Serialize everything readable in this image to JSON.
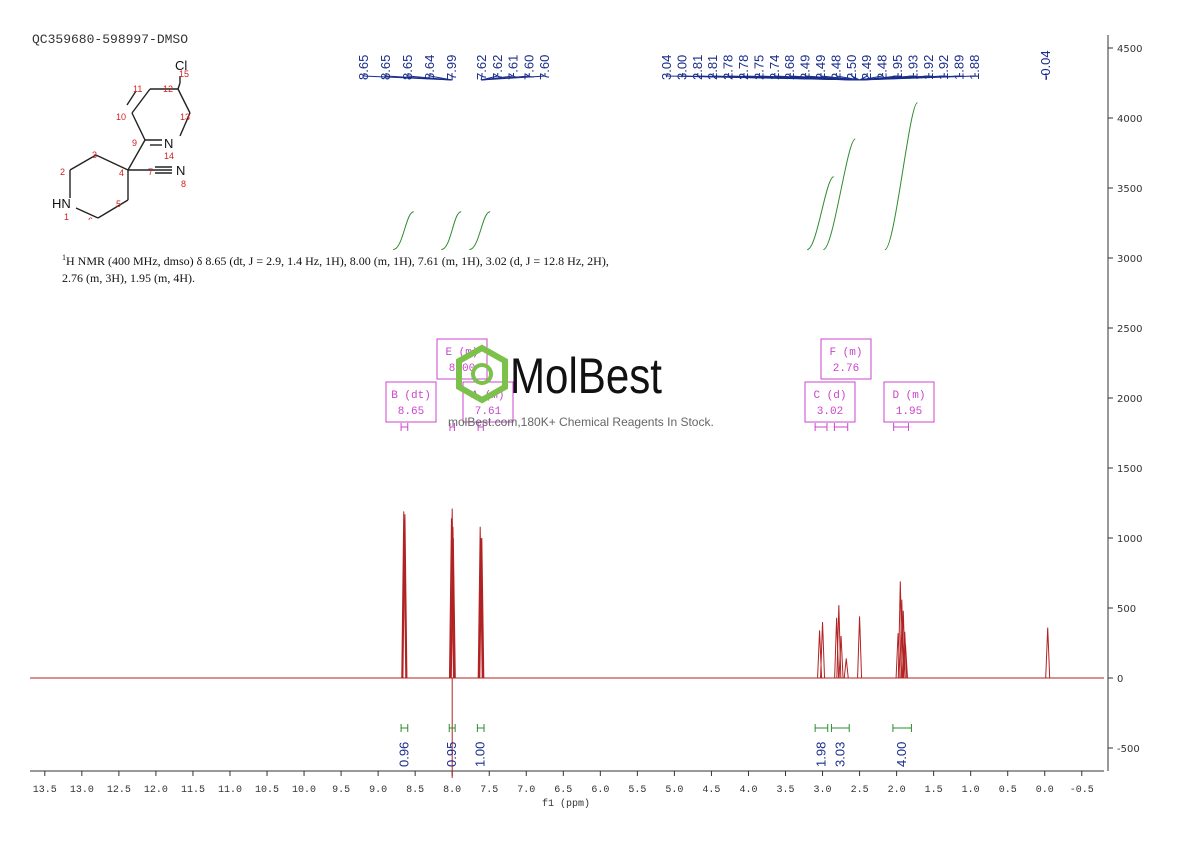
{
  "sample_id": "QC359680-598997-DMSO",
  "nmr_description": {
    "sup": "1",
    "text": "H NMR (400 MHz, dmso) δ 8.65 (dt, J = 2.9, 1.4 Hz, 1H), 8.00 (m, 1H), 7.61 (m, 1H), 3.02 (d, J = 12.8 Hz, 2H), 2.76 (m, 3H), 1.95 (m, 4H)."
  },
  "structure": {
    "atoms": [
      "Cl",
      "N",
      "N",
      "HN"
    ],
    "numbers": [
      "1",
      "2",
      "3",
      "4",
      "5",
      "6",
      "7",
      "8",
      "9",
      "10",
      "11",
      "12",
      "13",
      "14",
      "15"
    ]
  },
  "watermark": {
    "brand": "MolBest",
    "tagline": "molBest.com,180K+ Chemical Reagents In Stock."
  },
  "colors": {
    "spectrum": "#b22222",
    "peak_label": "#1a2d8c",
    "integral": "#2e8b2e",
    "multiplet": "#cc44cc",
    "axis": "#333333",
    "logo": "#7cc24a"
  },
  "chart_data": {
    "type": "line",
    "xlabel": "f1 (ppm)",
    "ylabel": "",
    "xlim": [
      13.7,
      -0.8
    ],
    "ylim": [
      -650,
      4800
    ],
    "x_ticks": [
      "13.5",
      "13.0",
      "12.5",
      "12.0",
      "11.5",
      "11.0",
      "10.5",
      "10.0",
      "9.5",
      "9.0",
      "8.5",
      "8.0",
      "7.5",
      "7.0",
      "6.5",
      "6.0",
      "5.5",
      "5.0",
      "4.5",
      "4.0",
      "3.5",
      "3.0",
      "2.5",
      "2.0",
      "1.5",
      "1.0",
      "0.5",
      "0.0",
      "-0.5"
    ],
    "y_ticks": [
      "-500",
      "0",
      "500",
      "1000",
      "1500",
      "2000",
      "2500",
      "3000",
      "3500",
      "4000",
      "4500"
    ],
    "peaks": [
      {
        "ppm": 8.654,
        "height": 1190
      },
      {
        "ppm": 8.649,
        "height": 1130
      },
      {
        "ppm": 8.644,
        "height": 1120
      },
      {
        "ppm": 8.638,
        "height": 1170
      },
      {
        "ppm": 8.01,
        "height": 1140
      },
      {
        "ppm": 8.0,
        "height": 1210
      },
      {
        "ppm": 7.99,
        "height": 1080
      },
      {
        "ppm": 7.985,
        "height": 1000
      },
      {
        "ppm": 7.622,
        "height": 1080
      },
      {
        "ppm": 7.614,
        "height": 1000
      },
      {
        "ppm": 7.606,
        "height": 990
      },
      {
        "ppm": 7.6,
        "height": 1000
      },
      {
        "ppm": 3.04,
        "height": 340
      },
      {
        "ppm": 3.0,
        "height": 400
      },
      {
        "ppm": 2.81,
        "height": 430
      },
      {
        "ppm": 2.78,
        "height": 520
      },
      {
        "ppm": 2.75,
        "height": 300
      },
      {
        "ppm": 2.68,
        "height": 140
      },
      {
        "ppm": 2.5,
        "height": 440
      },
      {
        "ppm": 1.98,
        "height": 320
      },
      {
        "ppm": 1.95,
        "height": 690
      },
      {
        "ppm": 1.93,
        "height": 560
      },
      {
        "ppm": 1.91,
        "height": 480
      },
      {
        "ppm": 1.89,
        "height": 330
      },
      {
        "ppm": 1.88,
        "height": 240
      },
      {
        "ppm": -0.04,
        "height": 360
      }
    ],
    "peak_label_groups": [
      {
        "labels": [
          "8.65",
          "8.65",
          "8.65",
          "8.64",
          "7.99"
        ],
        "target_ppm": 8.0
      },
      {
        "labels": [
          "7.62",
          "7.62",
          "7.61",
          "7.60",
          "7.60"
        ],
        "target_ppm": 7.61
      },
      {
        "labels": [
          "3.04",
          "3.00",
          "2.81",
          "2.81",
          "2.78",
          "2.78",
          "2.75",
          "2.74",
          "2.68",
          "2.49",
          "2.49",
          "2.48",
          "2.50",
          "2.49",
          "2.48",
          "1.95",
          "1.93",
          "1.92",
          "1.92",
          "1.89",
          "1.88"
        ],
        "target_ppm": 2.5
      },
      {
        "labels": [
          "-0.04"
        ],
        "target_ppm": -0.04
      }
    ],
    "integrals": [
      {
        "value": "0.96",
        "from": 8.69,
        "to": 8.6
      },
      {
        "value": "0.95",
        "from": 8.04,
        "to": 7.96
      },
      {
        "value": "1.00",
        "from": 7.66,
        "to": 7.57
      },
      {
        "value": "1.98",
        "from": 3.1,
        "to": 2.93
      },
      {
        "value": "3.03",
        "from": 2.88,
        "to": 2.64
      },
      {
        "value": "4.00",
        "from": 2.05,
        "to": 1.8
      }
    ],
    "integral_curves": [
      {
        "from": 8.69,
        "to": 8.6,
        "y_start": 3060,
        "y_end": 3330
      },
      {
        "from": 8.04,
        "to": 7.96,
        "y_start": 3060,
        "y_end": 3330
      },
      {
        "from": 7.66,
        "to": 7.57,
        "y_start": 3060,
        "y_end": 3330
      },
      {
        "from": 3.1,
        "to": 2.93,
        "y_start": 3060,
        "y_end": 3580
      },
      {
        "from": 2.88,
        "to": 2.64,
        "y_start": 3060,
        "y_end": 3850
      },
      {
        "from": 2.05,
        "to": 1.8,
        "y_start": 3060,
        "y_end": 4110
      }
    ],
    "multiplets": [
      {
        "name": "B (dt)",
        "value": "8.65",
        "ppm": 8.65,
        "from": 8.69,
        "to": 8.6
      },
      {
        "name": "E (m)",
        "value": "8.00",
        "ppm": 8.0,
        "from": 8.03,
        "to": 7.97
      },
      {
        "name": "A (m)",
        "value": "7.61",
        "ppm": 7.61,
        "from": 7.65,
        "to": 7.58
      },
      {
        "name": "C (d)",
        "value": "3.02",
        "ppm": 3.02,
        "from": 3.1,
        "to": 2.94
      },
      {
        "name": "F (m)",
        "value": "2.76",
        "ppm": 2.76,
        "from": 2.84,
        "to": 2.66
      },
      {
        "name": "D (m)",
        "value": "1.95",
        "ppm": 1.95,
        "from": 2.04,
        "to": 1.84
      }
    ]
  }
}
